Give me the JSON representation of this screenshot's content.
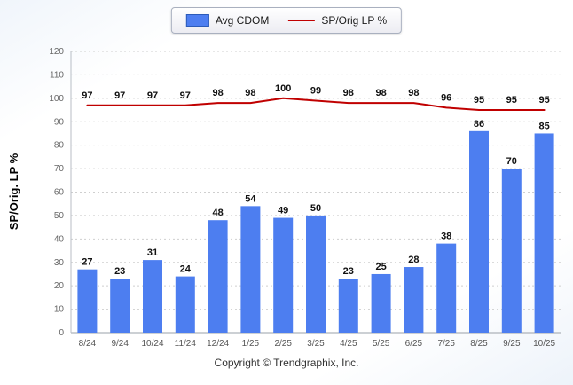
{
  "footer": {
    "text": "Copyright © Trendgraphix, Inc."
  },
  "chart_data": {
    "type": "bar",
    "title": "",
    "categories": [
      "8/24",
      "9/24",
      "10/24",
      "11/24",
      "12/24",
      "1/25",
      "2/25",
      "3/25",
      "4/25",
      "5/25",
      "6/25",
      "7/25",
      "8/25",
      "9/25",
      "10/25"
    ],
    "series": [
      {
        "name": "Avg CDOM",
        "type": "bar",
        "color": "#4d7ef0",
        "values": [
          27,
          23,
          31,
          24,
          48,
          54,
          49,
          50,
          23,
          25,
          28,
          38,
          86,
          70,
          85
        ]
      },
      {
        "name": "SP/Orig LP %",
        "type": "line",
        "color": "#c00000",
        "values": [
          97,
          97,
          97,
          97,
          98,
          98,
          100,
          99,
          98,
          98,
          98,
          96,
          95,
          95,
          95
        ]
      }
    ],
    "xlabel": "",
    "ylabel": "SP/Orig. LP %",
    "ylim": [
      0,
      120
    ],
    "ytick_step": 10,
    "grid": true,
    "legend_position": "top"
  }
}
